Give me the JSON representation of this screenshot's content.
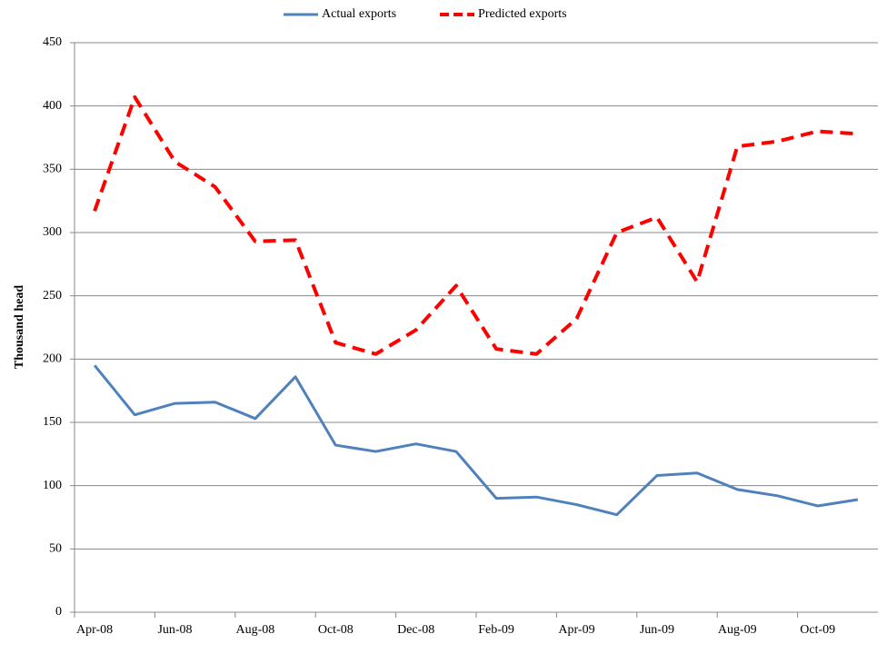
{
  "chart_data": {
    "type": "line",
    "y_label": "Thousand head",
    "categories": [
      "Apr-08",
      null,
      "Jun-08",
      null,
      "Aug-08",
      null,
      "Oct-08",
      null,
      "Dec-08",
      null,
      "Feb-09",
      null,
      "Apr-09",
      null,
      "Jun-09",
      null,
      "Aug-09",
      null,
      "Oct-09",
      null
    ],
    "series": [
      {
        "name": "Actual exports",
        "color": "#4f81bd",
        "dash": "solid",
        "values": [
          195,
          156,
          165,
          166,
          153,
          186,
          132,
          127,
          133,
          127,
          90,
          91,
          85,
          77,
          108,
          110,
          97,
          92,
          84,
          89
        ]
      },
      {
        "name": "Predicted exports",
        "color": "#ff0000",
        "dash": "dashed",
        "values": [
          317,
          407,
          356,
          336,
          293,
          294,
          213,
          204,
          223,
          258,
          208,
          204,
          232,
          300,
          312,
          261,
          368,
          372,
          380,
          378
        ]
      }
    ],
    "ylim": [
      0,
      450
    ],
    "yticks": [
      0,
      50,
      100,
      150,
      200,
      250,
      300,
      350,
      400,
      450
    ],
    "grid": true,
    "legend": "top"
  }
}
